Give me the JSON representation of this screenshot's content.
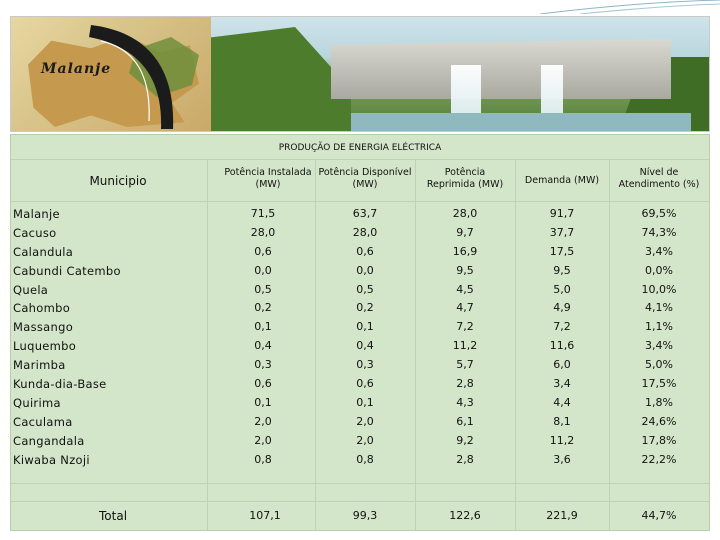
{
  "banner": {
    "logo_text": "Malanje"
  },
  "table": {
    "title": "PRODUÇÃO DE ENERGIA ELÉCTRICA",
    "headers": {
      "municipio": "Municipio",
      "instalada": [
        "Potência Instalada",
        "(MW)"
      ],
      "disponivel": [
        "Potência Disponível",
        "(MW)"
      ],
      "reprimida": [
        "Potência",
        "Reprimida (MW)"
      ],
      "demanda": [
        "Demanda (MW)"
      ],
      "atendimento": [
        "Nível de",
        "Atendimento (%)"
      ]
    },
    "municipios": [
      "Malanje",
      "Cacuso",
      "Calandula",
      "Cabundi Catembo",
      "Quela",
      "Cahombo",
      "Massango",
      "Luquembo",
      "Marimba",
      "Kunda-dia-Base",
      "Quirima",
      "Caculama",
      "Cangandala",
      "Kiwaba Nzoji"
    ],
    "instalada": [
      "71,5",
      "28,0",
      "0,6",
      "0,0",
      "0,5",
      "0,2",
      "0,1",
      "0,4",
      "0,3",
      "0,6",
      "0,1",
      "2,0",
      "2,0",
      "0,8"
    ],
    "disponivel": [
      "63,7",
      "28,0",
      "0,6",
      "0,0",
      "0,5",
      "0,2",
      "0,1",
      "0,4",
      "0,3",
      "0,6",
      "0,1",
      "2,0",
      "2,0",
      "0,8"
    ],
    "reprimida": [
      "28,0",
      "9,7",
      "16,9",
      "9,5",
      "4,5",
      "4,7",
      "7,2",
      "11,2",
      "5,7",
      "2,8",
      "4,3",
      "6,1",
      "9,2",
      "2,8"
    ],
    "demanda": [
      "91,7",
      "37,7",
      "17,5",
      "9,5",
      "5,0",
      "4,9",
      "7,2",
      "11,6",
      "6,0",
      "3,4",
      "4,4",
      "8,1",
      "11,2",
      "3,6"
    ],
    "atendimento": [
      "69,5%",
      "74,3%",
      "3,4%",
      "0,0%",
      "10,0%",
      "4,1%",
      "1,1%",
      "3,4%",
      "5,0%",
      "17,5%",
      "1,8%",
      "24,6%",
      "17,8%",
      "22,2%"
    ],
    "total": {
      "label": "Total",
      "instalada": "107,1",
      "disponivel": "99,3",
      "reprimida": "122,6",
      "demanda": "221,9",
      "atendimento": "44,7%"
    }
  }
}
